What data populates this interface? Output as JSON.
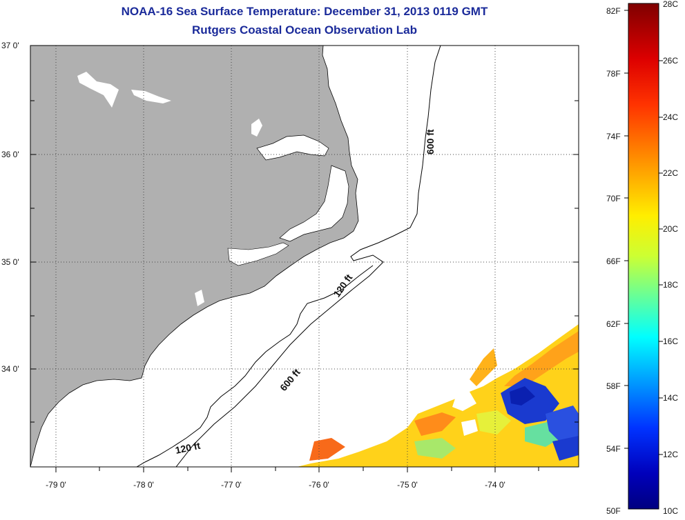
{
  "title": {
    "line1": "NOAA-16 Sea Surface Temperature:  December 31, 2013 0119 GMT",
    "line2": "Rutgers Coastal Ocean Observation Lab"
  },
  "map": {
    "lat_ticks": [
      "37 0'",
      "36 0'",
      "35 0'",
      "34 0'"
    ],
    "lon_ticks": [
      "-79 0'",
      "-78 0'",
      "-77 0'",
      "-76 0'",
      "-75 0'",
      "-74 0'"
    ],
    "contour_labels": [
      "600 ft",
      "120 ft",
      "600 ft",
      "120 ft"
    ],
    "land_color": "#b0b0b0",
    "ocean_color": "#ffffff"
  },
  "colorbar": {
    "fahrenheit_labels": [
      "82F",
      "78F",
      "74F",
      "70F",
      "66F",
      "62F",
      "58F",
      "54F",
      "50F"
    ],
    "celsius_labels": [
      "28C",
      "26C",
      "24C",
      "22C",
      "20C",
      "18C",
      "16C",
      "14C",
      "12C",
      "10C"
    ],
    "colors": [
      "#8b0000",
      "#ff2000",
      "#ff8c00",
      "#ffff00",
      "#7fff7f",
      "#00ffff",
      "#0080ff",
      "#0000cd",
      "#00008b"
    ]
  }
}
